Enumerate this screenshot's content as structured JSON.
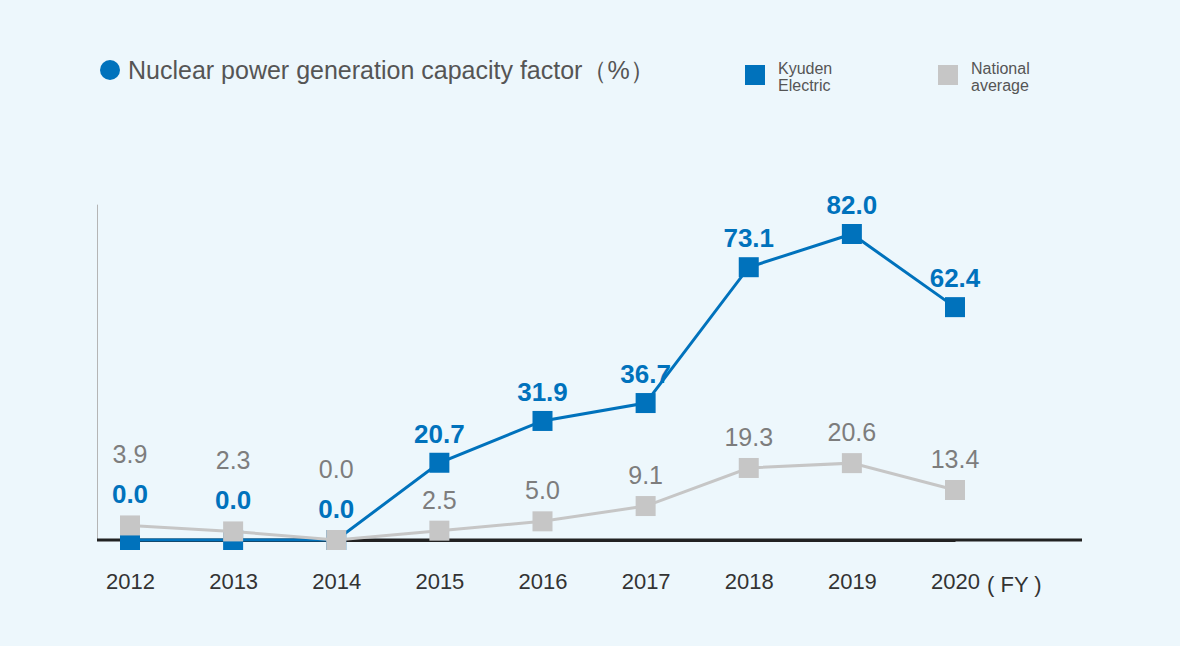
{
  "chart_data": {
    "type": "line",
    "title": "Nuclear power generation capacity factor（%）",
    "x_label": "( FY )",
    "categories": [
      "2012",
      "2013",
      "2014",
      "2015",
      "2016",
      "2017",
      "2018",
      "2019",
      "2020"
    ],
    "series": [
      {
        "name": "Kyuden Electric",
        "color": "#0072bc",
        "marker": "square",
        "values": [
          0.0,
          0.0,
          0.0,
          20.7,
          31.9,
          36.7,
          73.1,
          82.0,
          62.4
        ],
        "value_labels": [
          "0.0",
          "0.0",
          "0.0",
          "20.7",
          "31.9",
          "36.7",
          "73.1",
          "82.0",
          "62.4"
        ]
      },
      {
        "name": "National average",
        "color": "#c6c6c6",
        "marker": "square",
        "values": [
          3.9,
          2.3,
          0.0,
          2.5,
          5.0,
          9.1,
          19.3,
          20.6,
          13.4
        ],
        "value_labels": [
          "3.9",
          "2.3",
          "0.0",
          "2.5",
          "5.0",
          "9.1",
          "19.3",
          "20.6",
          "13.4"
        ]
      }
    ],
    "ylim": [
      0,
      90
    ],
    "yticks": [
      0
    ],
    "data_labels": true,
    "tick_labels": "x",
    "legend": "top-right"
  }
}
